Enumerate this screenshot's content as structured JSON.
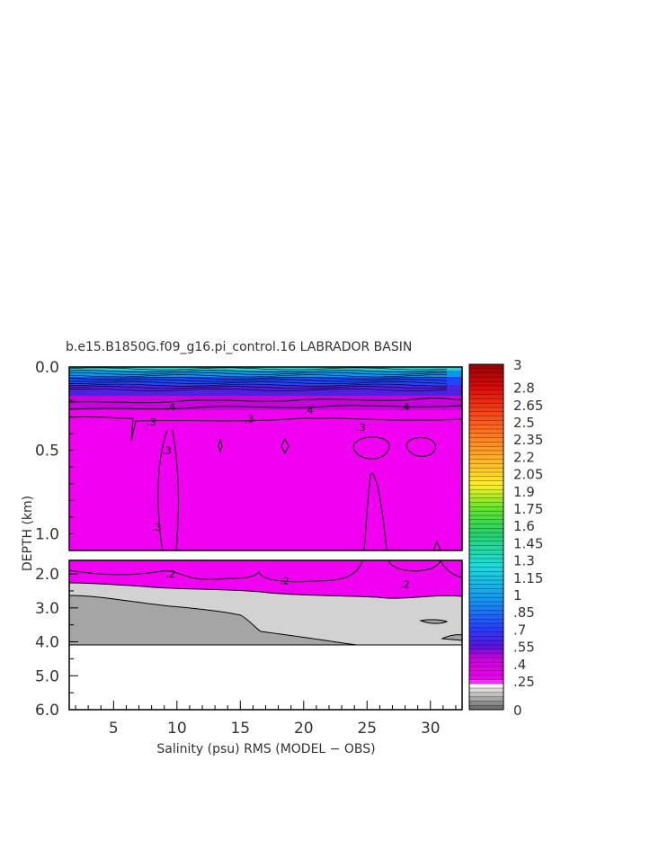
{
  "chart_data": {
    "type": "heatmap",
    "title": "b.e15.B1850G.f09_g16.pi_control.16 LABRADOR BASIN",
    "xlabel": "Salinity (psu) RMS (MODEL − OBS)",
    "ylabel": "DEPTH (km)",
    "xlim": [
      1.5,
      32.5
    ],
    "x_ticks": [
      "5",
      "10",
      "15",
      "20",
      "25",
      "30"
    ],
    "x_tick_values": [
      5,
      10,
      15,
      20,
      25,
      30
    ],
    "upper_panel": {
      "ylim": [
        0.0,
        1.1
      ],
      "y_ticks": [
        "0.0",
        "0.5",
        "1.0"
      ],
      "y_tick_values": [
        0.0,
        0.5,
        1.0
      ]
    },
    "lower_panel": {
      "ylim": [
        1.6,
        6.0
      ],
      "y_ticks": [
        "2.0",
        "3.0",
        "4.0",
        "5.0",
        "6.0"
      ],
      "y_tick_values": [
        2.0,
        3.0,
        4.0,
        5.0,
        6.0
      ]
    },
    "colorbar": {
      "min": 0,
      "max": 3,
      "labels": [
        "3",
        "2.8",
        "2.65",
        "2.5",
        "2.35",
        "2.2",
        "2.05",
        "1.9",
        "1.75",
        "1.6",
        "1.45",
        "1.3",
        "1.15",
        "1",
        ".85",
        ".7",
        ".55",
        ".4",
        ".25",
        "0"
      ],
      "label_values": [
        3,
        2.8,
        2.65,
        2.5,
        2.35,
        2.2,
        2.05,
        1.9,
        1.75,
        1.6,
        1.45,
        1.3,
        1.15,
        1,
        0.85,
        0.7,
        0.55,
        0.4,
        0.25,
        0
      ]
    },
    "contour_labels": [
      {
        "text": ".3",
        "x": 8.0,
        "depth": 0.33
      },
      {
        "text": ".3",
        "x": 15.7,
        "depth": 0.31
      },
      {
        "text": ".3",
        "x": 24.5,
        "depth": 0.36
      },
      {
        "text": ".4",
        "x": 9.5,
        "depth": 0.24
      },
      {
        "text": ".4",
        "x": 20.4,
        "depth": 0.26
      },
      {
        "text": ".4",
        "x": 28.0,
        "depth": 0.24
      },
      {
        "text": ".3",
        "x": 9.2,
        "depth": 0.5
      },
      {
        "text": ".3",
        "x": 8.4,
        "depth": 0.96
      },
      {
        "text": ".2",
        "x": 9.5,
        "depth": 2.0
      },
      {
        "text": ".2",
        "x": 18.5,
        "depth": 2.2
      },
      {
        "text": ".2",
        "x": 28.0,
        "depth": 2.3
      }
    ],
    "regions": {
      "surface_peak": 1.4,
      "mixed_layer": 0.3,
      "deep_upper": 0.25,
      "deep_mid": 0.15,
      "bottom": 0.05
    },
    "grid": false
  },
  "colors": {
    "magenta_fill": "#f000f0",
    "light_gray": "#d2d2d2",
    "dark_gray": "#a5a5a5",
    "axis": "#000000",
    "text": "#333333"
  }
}
